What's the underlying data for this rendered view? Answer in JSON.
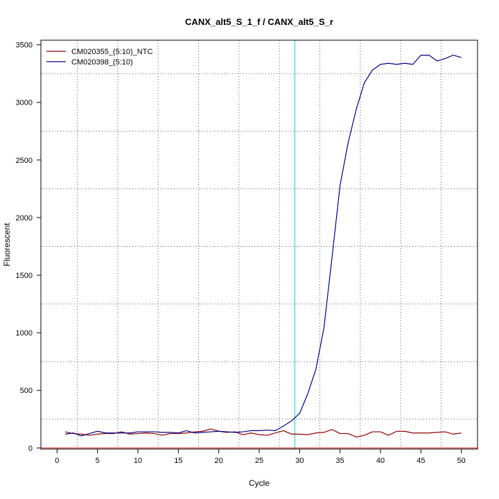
{
  "chart_data": {
    "type": "line",
    "title": "CANX_alt5_S_1_f / CANX_alt5_S_r",
    "xlabel": "Cycle",
    "ylabel": "Fluorescent",
    "xlim": [
      -2,
      52
    ],
    "ylim": [
      -10,
      3540
    ],
    "x_ticks": [
      0,
      5,
      10,
      15,
      20,
      25,
      30,
      35,
      40,
      45,
      50
    ],
    "y_ticks": [
      0,
      500,
      1000,
      1500,
      2000,
      2500,
      3000,
      3500
    ],
    "grid": true,
    "legend_position": "top-left",
    "threshold_line": {
      "x": 29.4,
      "color": "#00cccc"
    },
    "baseline": {
      "y": 0,
      "color": "#cc0000"
    },
    "x": [
      1,
      2,
      3,
      4,
      5,
      6,
      7,
      8,
      9,
      10,
      11,
      12,
      13,
      14,
      15,
      16,
      17,
      18,
      19,
      20,
      21,
      22,
      23,
      24,
      25,
      26,
      27,
      28,
      29,
      30,
      31,
      32,
      33,
      34,
      35,
      36,
      37,
      38,
      39,
      40,
      41,
      42,
      43,
      44,
      45,
      46,
      47,
      48,
      49,
      50
    ],
    "series": [
      {
        "name": "CM020355_(5:10)_NTC",
        "color": "#8b0000",
        "values": [
          140,
          125,
          120,
          110,
          120,
          125,
          125,
          140,
          120,
          125,
          130,
          125,
          110,
          125,
          125,
          130,
          140,
          145,
          165,
          145,
          135,
          140,
          115,
          130,
          115,
          110,
          130,
          150,
          120,
          120,
          115,
          130,
          135,
          160,
          125,
          125,
          95,
          110,
          140,
          140,
          110,
          145,
          145,
          130,
          130,
          130,
          135,
          140,
          120,
          130
        ]
      },
      {
        "name": "CM020398_(5:10)",
        "color": "#000080",
        "values": [
          120,
          130,
          105,
          125,
          145,
          130,
          130,
          130,
          130,
          140,
          140,
          140,
          135,
          135,
          130,
          150,
          130,
          135,
          140,
          145,
          140,
          135,
          140,
          150,
          150,
          155,
          150,
          190,
          235,
          300,
          470,
          680,
          1040,
          1650,
          2280,
          2650,
          2940,
          3170,
          3280,
          3330,
          3340,
          3330,
          3340,
          3330,
          3410,
          3410,
          3360,
          3380,
          3410,
          3390
        ]
      }
    ]
  }
}
